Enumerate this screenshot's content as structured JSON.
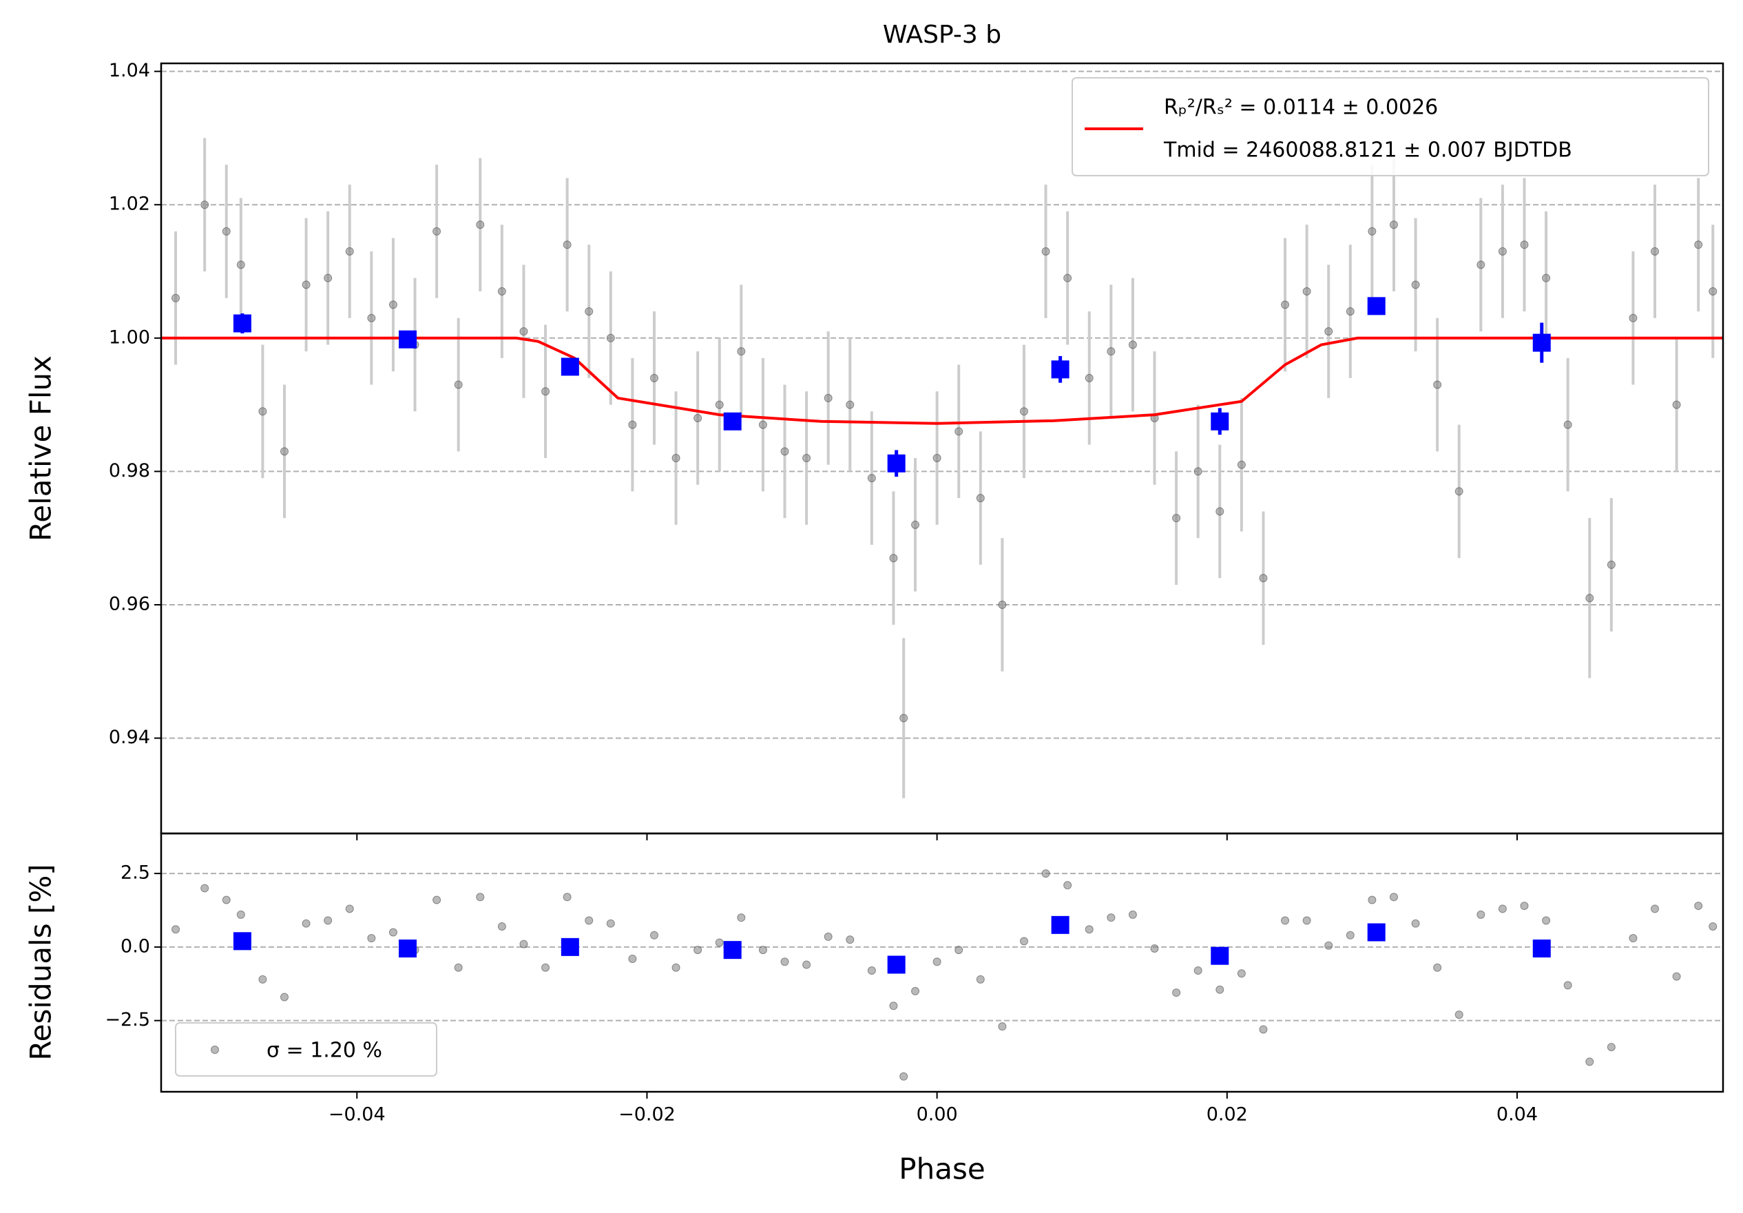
{
  "chart_data": [
    {
      "type": "errorbar",
      "title": "WASP-3 b",
      "ylabel": "Relative Flux",
      "xlim": [
        -0.0535,
        0.0542
      ],
      "ylim": [
        0.9257,
        1.0412
      ],
      "yticks": [
        0.94,
        0.96,
        0.98,
        {
          "value": 1.0,
          "label": "1.00"
        },
        1.02,
        1.04
      ],
      "grid": true,
      "legend": "upper right",
      "series": [
        {
          "style": "points",
          "color": "#808080",
          "errcolor": "#cccccc",
          "x": [
            -0.0525,
            -0.0505,
            -0.049,
            -0.048,
            -0.0465,
            -0.045,
            -0.0435,
            -0.042,
            -0.0405,
            -0.039,
            -0.0375,
            -0.036,
            -0.0345,
            -0.033,
            -0.0315,
            -0.03,
            -0.0285,
            -0.027,
            -0.0255,
            -0.024,
            -0.0225,
            -0.021,
            -0.0195,
            -0.018,
            -0.0165,
            -0.015,
            -0.0135,
            -0.012,
            -0.0105,
            -0.009,
            -0.0075,
            -0.006,
            -0.0045,
            -0.003,
            -0.0023,
            -0.0015,
            0,
            0.0015,
            0.003,
            0.0045,
            0.006,
            0.0075,
            0.009,
            0.0105,
            0.012,
            0.0135,
            0.015,
            0.0165,
            0.018,
            0.0195,
            0.021,
            0.0225,
            0.024,
            0.0255,
            0.027,
            0.0285,
            0.03,
            0.0315,
            0.033,
            0.0345,
            0.036,
            0.0375,
            0.039,
            0.0405,
            0.042,
            0.0435,
            0.045,
            0.0465,
            0.048,
            0.0495,
            0.051,
            0.0525,
            0.0535
          ],
          "values": [
            1.006,
            1.02,
            1.016,
            1.011,
            0.989,
            0.983,
            1.008,
            1.009,
            1.013,
            1.003,
            1.005,
            0.999,
            1.016,
            0.993,
            1.017,
            1.007,
            1.001,
            0.992,
            1.014,
            1.004,
            1.0,
            0.987,
            0.994,
            0.982,
            0.988,
            0.99,
            0.998,
            0.987,
            0.983,
            0.982,
            0.991,
            0.99,
            0.979,
            0.967,
            0.943,
            0.972,
            0.982,
            0.986,
            0.976,
            0.96,
            0.989,
            1.013,
            1.009,
            0.994,
            0.998,
            0.999,
            0.988,
            0.973,
            0.98,
            0.974,
            0.981,
            0.964,
            1.005,
            1.007,
            1.001,
            1.004,
            1.016,
            1.017,
            1.008,
            0.993,
            0.977,
            1.011,
            1.013,
            1.014,
            1.009,
            0.987,
            0.961,
            0.966,
            1.003,
            1.013,
            0.99,
            1.014,
            1.007
          ],
          "errors": [
            0.01,
            0.01,
            0.01,
            0.01,
            0.01,
            0.01,
            0.01,
            0.01,
            0.01,
            0.01,
            0.01,
            0.01,
            0.01,
            0.01,
            0.01,
            0.01,
            0.01,
            0.01,
            0.01,
            0.01,
            0.01,
            0.01,
            0.01,
            0.01,
            0.01,
            0.01,
            0.01,
            0.01,
            0.01,
            0.01,
            0.01,
            0.01,
            0.01,
            0.01,
            0.012,
            0.01,
            0.01,
            0.01,
            0.01,
            0.01,
            0.01,
            0.01,
            0.01,
            0.01,
            0.01,
            0.01,
            0.01,
            0.01,
            0.01,
            0.01,
            0.01,
            0.01,
            0.01,
            0.01,
            0.01,
            0.01,
            0.01,
            0.01,
            0.01,
            0.01,
            0.01,
            0.01,
            0.01,
            0.01,
            0.01,
            0.01,
            0.012,
            0.01,
            0.01,
            0.01,
            0.01,
            0.01,
            0.01
          ]
        },
        {
          "style": "line",
          "color": "#ff0000",
          "name": "Rₚ²/Rₛ² = 0.0114 ± 0.0026",
          "name2": "Tmid = 2460088.8121 ± 0.007 BJDTDB",
          "x": [
            -0.0535,
            -0.029,
            -0.0275,
            -0.025,
            -0.022,
            -0.015,
            -0.008,
            0.0,
            0.008,
            0.015,
            0.021,
            0.024,
            0.0265,
            0.029,
            0.0542
          ],
          "values": [
            1.0,
            1.0,
            0.9995,
            0.997,
            0.991,
            0.9885,
            0.9875,
            0.9872,
            0.9876,
            0.9885,
            0.9905,
            0.996,
            0.999,
            1.0,
            1.0
          ]
        },
        {
          "style": "squares",
          "color": "#0000ff",
          "x": [
            -0.0479,
            -0.0365,
            -0.0253,
            -0.0141,
            -0.0028,
            0.0085,
            0.0195,
            0.0303,
            0.0417
          ],
          "values": [
            1.0022,
            0.9998,
            0.9957,
            0.9875,
            0.9812,
            0.9953,
            0.9875,
            1.0048,
            0.9993
          ],
          "errors": [
            0.0015,
            0.0012,
            0.001,
            0.001,
            0.002,
            0.002,
            0.002,
            0.0012,
            0.003
          ]
        }
      ]
    },
    {
      "type": "scatter",
      "ylabel": "Residuals [%]",
      "xlabel": "Phase",
      "xlim": [
        -0.0535,
        0.0542
      ],
      "ylim": [
        -4.92,
        3.86
      ],
      "xticks": [
        {
          "value": -0.04,
          "label": "−0.04"
        },
        {
          "value": -0.02,
          "label": "−0.02"
        },
        {
          "value": 0,
          "label": "0.00"
        },
        {
          "value": 0.02,
          "label": "0.02"
        },
        {
          "value": 0.04,
          "label": "0.04"
        }
      ],
      "yticks": [
        {
          "value": -2.5,
          "label": "−2.5"
        },
        {
          "value": 0,
          "label": "0.0"
        },
        2.5
      ],
      "grid": true,
      "legend": "lower left",
      "series": [
        {
          "style": "points",
          "color": "#808080",
          "name": "σ = 1.20 %",
          "x": [
            -0.0525,
            -0.0505,
            -0.049,
            -0.048,
            -0.0465,
            -0.045,
            -0.0435,
            -0.042,
            -0.0405,
            -0.039,
            -0.0375,
            -0.036,
            -0.0345,
            -0.033,
            -0.0315,
            -0.03,
            -0.0285,
            -0.027,
            -0.0255,
            -0.024,
            -0.0225,
            -0.021,
            -0.0195,
            -0.018,
            -0.0165,
            -0.015,
            -0.0135,
            -0.012,
            -0.0105,
            -0.009,
            -0.0075,
            -0.006,
            -0.0045,
            -0.003,
            -0.0023,
            -0.0015,
            0,
            0.0015,
            0.003,
            0.0045,
            0.006,
            0.0075,
            0.009,
            0.0105,
            0.012,
            0.0135,
            0.015,
            0.0165,
            0.018,
            0.0195,
            0.021,
            0.0225,
            0.024,
            0.0255,
            0.027,
            0.0285,
            0.03,
            0.0315,
            0.033,
            0.0345,
            0.036,
            0.0375,
            0.039,
            0.0405,
            0.042,
            0.0435,
            0.045,
            0.0465,
            0.048,
            0.0495,
            0.051,
            0.0525,
            0.0535
          ],
          "values": [
            0.6,
            2.0,
            1.6,
            1.1,
            -1.1,
            -1.7,
            0.8,
            0.9,
            1.3,
            0.3,
            0.5,
            -0.1,
            1.6,
            -0.7,
            1.7,
            0.7,
            0.1,
            -0.7,
            1.7,
            0.9,
            0.8,
            -0.4,
            0.4,
            -0.7,
            -0.1,
            0.15,
            1.0,
            -0.1,
            -0.5,
            -0.6,
            0.35,
            0.25,
            -0.8,
            -2.0,
            -4.4,
            -1.5,
            -0.5,
            -0.1,
            -1.1,
            -2.7,
            0.2,
            2.5,
            2.1,
            0.6,
            1.0,
            1.1,
            -0.05,
            -1.55,
            -0.8,
            -1.45,
            -0.9,
            -2.8,
            0.9,
            0.9,
            0.05,
            0.4,
            1.6,
            1.7,
            0.8,
            -0.7,
            -2.3,
            1.1,
            1.3,
            1.4,
            0.9,
            -1.3,
            -3.9,
            -3.4,
            0.3,
            1.3,
            -1.0,
            1.4,
            0.7
          ]
        },
        {
          "style": "squares",
          "color": "#0000ff",
          "x": [
            -0.0479,
            -0.0365,
            -0.0253,
            -0.0141,
            -0.0028,
            0.0085,
            0.0195,
            0.0303,
            0.0417
          ],
          "values": [
            0.2,
            -0.05,
            0.0,
            -0.1,
            -0.6,
            0.75,
            -0.3,
            0.5,
            -0.05
          ]
        }
      ]
    }
  ]
}
